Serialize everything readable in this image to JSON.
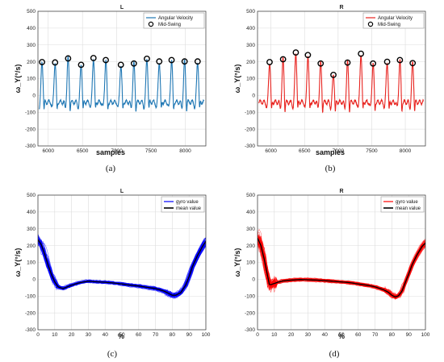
{
  "chart_data": [
    {
      "type": "line",
      "panel": "(a)",
      "title": "L",
      "xlabel": "samples",
      "ylabel": "ω_Y(°/s)",
      "xlim": [
        5850,
        8300
      ],
      "ylim": [
        -300,
        500
      ],
      "xticks": [
        "6000",
        "6500",
        "7000",
        "7500",
        "8000"
      ],
      "yticks": [
        "-300",
        "-200",
        "-100",
        "0",
        "100",
        "200",
        "300",
        "400",
        "500"
      ],
      "grid": true,
      "legend_position": "top-right",
      "color": "#1f77b4",
      "series": [
        {
          "name": "Angular Velocity",
          "style": "line"
        },
        {
          "name": "Mid-Swing",
          "style": "marker-circle",
          "x": [
            5910,
            6100,
            6290,
            6480,
            6660,
            6840,
            7060,
            7250,
            7440,
            7620,
            7800,
            7990,
            8180
          ],
          "y": [
            198,
            196,
            220,
            182,
            222,
            210,
            182,
            190,
            218,
            202,
            210,
            202,
            202
          ]
        }
      ]
    },
    {
      "type": "line",
      "panel": "(b)",
      "title": "R",
      "xlabel": "samples",
      "ylabel": "ω_Y(°/s)",
      "xlim": [
        5800,
        8300
      ],
      "ylim": [
        -300,
        500
      ],
      "xticks": [
        "6000",
        "6500",
        "7000",
        "7500",
        "8000"
      ],
      "yticks": [
        "-300",
        "-200",
        "-100",
        "0",
        "100",
        "200",
        "300",
        "400",
        "500"
      ],
      "grid": true,
      "legend_position": "top-right",
      "color": "#e8231f",
      "series": [
        {
          "name": "Angular Velocity",
          "style": "line"
        },
        {
          "name": "Mid-Swing",
          "style": "marker-circle",
          "x": [
            5980,
            6180,
            6370,
            6550,
            6740,
            6930,
            7140,
            7340,
            7520,
            7730,
            7920,
            8110
          ],
          "y": [
            198,
            215,
            255,
            240,
            190,
            122,
            195,
            248,
            190,
            200,
            210,
            192
          ]
        }
      ]
    },
    {
      "type": "line",
      "panel": "(c)",
      "title": "L",
      "xlabel": "%",
      "ylabel": "ω_Y(°/s)",
      "xlim": [
        0,
        100
      ],
      "ylim": [
        -300,
        500
      ],
      "xticks": [
        "0",
        "10",
        "20",
        "30",
        "40",
        "50",
        "60",
        "70",
        "80",
        "90",
        "100"
      ],
      "yticks": [
        "-300",
        "-200",
        "-100",
        "0",
        "100",
        "200",
        "300",
        "400",
        "500"
      ],
      "grid": true,
      "legend_position": "top-right",
      "series": [
        {
          "name": "gyro value",
          "color": "#0000ff"
        },
        {
          "name": "mean value",
          "color": "#000000"
        }
      ],
      "mean_x": [
        0,
        2,
        4,
        6,
        8,
        10,
        12,
        15,
        20,
        25,
        30,
        35,
        40,
        45,
        50,
        55,
        60,
        65,
        70,
        75,
        78,
        80,
        82,
        85,
        88,
        90,
        92,
        95,
        98,
        100
      ],
      "mean_y": [
        235,
        205,
        150,
        85,
        30,
        -15,
        -45,
        -55,
        -35,
        -20,
        -12,
        -15,
        -18,
        -22,
        -28,
        -35,
        -40,
        -48,
        -55,
        -70,
        -85,
        -95,
        -95,
        -80,
        -35,
        15,
        75,
        140,
        195,
        225
      ]
    },
    {
      "type": "line",
      "panel": "(d)",
      "title": "R",
      "xlabel": "%",
      "ylabel": "ω_Y(°/s)",
      "xlim": [
        0,
        100
      ],
      "ylim": [
        -300,
        500
      ],
      "xticks": [
        "0",
        "10",
        "20",
        "30",
        "40",
        "50",
        "60",
        "70",
        "80",
        "90",
        "100"
      ],
      "yticks": [
        "-300",
        "-200",
        "-100",
        "0",
        "100",
        "200",
        "300",
        "400",
        "500"
      ],
      "grid": true,
      "legend_position": "top-right",
      "series": [
        {
          "name": "gyro value",
          "color": "#ff0000"
        },
        {
          "name": "mean value",
          "color": "#000000"
        }
      ],
      "mean_x": [
        0,
        2,
        4,
        6,
        7,
        8,
        10,
        12,
        15,
        20,
        25,
        30,
        35,
        40,
        45,
        50,
        55,
        60,
        65,
        70,
        75,
        78,
        80,
        82,
        84,
        86,
        88,
        90,
        92,
        95,
        98,
        100
      ],
      "mean_y": [
        245,
        200,
        120,
        20,
        -30,
        -32,
        -25,
        -18,
        -10,
        -5,
        -2,
        -3,
        -5,
        -8,
        -12,
        -16,
        -20,
        -28,
        -35,
        -45,
        -62,
        -78,
        -95,
        -105,
        -98,
        -70,
        -20,
        30,
        85,
        145,
        195,
        215
      ]
    }
  ],
  "captions": [
    "(a)",
    "(b)",
    "(c)",
    "(d)"
  ]
}
